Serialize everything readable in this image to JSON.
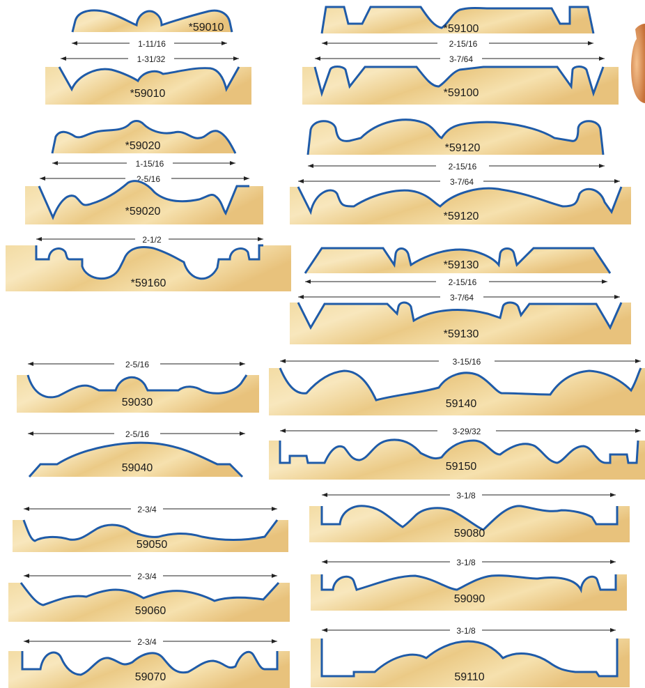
{
  "colors": {
    "wood_light": "#f6e3b2",
    "wood_dark": "#e6bf78",
    "profile_line": "#1f5ba8",
    "dim_line": "#222222",
    "bit_orange": "#d98b52"
  },
  "profiles": [
    {
      "id": "p01",
      "code": "*59010",
      "dimension": "1-11/16"
    },
    {
      "id": "p02",
      "code": "*59010",
      "dimension": "1-31/32"
    },
    {
      "id": "p03",
      "code": "*59020",
      "dimension": "1-15/16"
    },
    {
      "id": "p04",
      "code": "*59020",
      "dimension": "2-5/16"
    },
    {
      "id": "p05",
      "code": "*59160",
      "dimension": "2-1/2"
    },
    {
      "id": "p06",
      "code": "59030",
      "dimension": "2-5/16"
    },
    {
      "id": "p07",
      "code": "59040",
      "dimension": "2-5/16"
    },
    {
      "id": "p08",
      "code": "59050",
      "dimension": "2-3/4"
    },
    {
      "id": "p09",
      "code": "59060",
      "dimension": "2-3/4"
    },
    {
      "id": "p10",
      "code": "59070",
      "dimension": "2-3/4"
    },
    {
      "id": "p11",
      "code": "*59100",
      "dimension": "2-15/16"
    },
    {
      "id": "p12",
      "code": "*59100",
      "dimension": "3-7/64"
    },
    {
      "id": "p13",
      "code": "*59120",
      "dimension": "2-15/16"
    },
    {
      "id": "p14",
      "code": "*59120",
      "dimension": "3-7/64"
    },
    {
      "id": "p15",
      "code": "*59130",
      "dimension": "2-15/16"
    },
    {
      "id": "p16",
      "code": "*59130",
      "dimension": "3-7/64"
    },
    {
      "id": "p17",
      "code": "59140",
      "dimension": "3-15/16"
    },
    {
      "id": "p18",
      "code": "59150",
      "dimension": "3-29/32"
    },
    {
      "id": "p19",
      "code": "59080",
      "dimension": "3-1/8"
    },
    {
      "id": "p20",
      "code": "59090",
      "dimension": "3-1/8"
    },
    {
      "id": "p21",
      "code": "59110",
      "dimension": "3-1/8"
    }
  ]
}
